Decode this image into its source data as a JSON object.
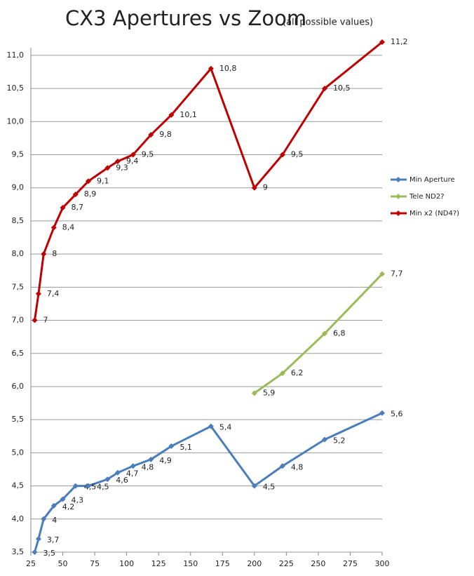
{
  "chart_data": {
    "type": "line",
    "title": "CX3 Apertures vs Zoom",
    "subtitle": "(all possible values)",
    "x": [
      28,
      31,
      35,
      43,
      50,
      60,
      70,
      85,
      93,
      105,
      119,
      135,
      166,
      200,
      222,
      255,
      300
    ],
    "series": [
      {
        "name": "Min Aperture",
        "color": "#4a7ebb",
        "values": [
          3.5,
          3.7,
          4.0,
          4.2,
          4.3,
          4.5,
          4.5,
          4.6,
          4.7,
          4.8,
          4.9,
          5.1,
          5.4,
          4.5,
          4.8,
          5.2,
          5.6
        ],
        "value_labels": [
          "3,5",
          "3,7",
          "4",
          "4,2",
          "4,3",
          "4,5",
          "4,5",
          "4,6",
          "4,7",
          "4,8",
          "4,9",
          "5,1",
          "5,4",
          "4,5",
          "4,8",
          "5,2",
          "5,6"
        ]
      },
      {
        "name": "Tele ND2?",
        "color": "#9bbb59",
        "values": [
          null,
          null,
          null,
          null,
          null,
          null,
          null,
          null,
          null,
          null,
          null,
          null,
          null,
          5.9,
          6.2,
          6.8,
          7.7
        ],
        "value_labels": [
          null,
          null,
          null,
          null,
          null,
          null,
          null,
          null,
          null,
          null,
          null,
          null,
          null,
          "5,9",
          "6,2",
          "6,8",
          "7,7"
        ]
      },
      {
        "name": "Min x2 (ND4?)",
        "color": "#c00000",
        "values": [
          7.0,
          7.4,
          8.0,
          8.4,
          8.7,
          8.9,
          9.1,
          9.3,
          9.4,
          9.5,
          9.8,
          10.1,
          10.8,
          9.0,
          9.5,
          10.5,
          11.2
        ],
        "value_labels": [
          "7",
          "7,4",
          "8",
          "8,4",
          "8,7",
          "8,9",
          "9,1",
          "9,3",
          "9,4",
          "9,5",
          "9,8",
          "10,1",
          "10,8",
          "9",
          "9,5",
          "10,5",
          "11,2"
        ]
      }
    ],
    "xlim": [
      25,
      300
    ],
    "xticks": [
      25,
      50,
      75,
      100,
      125,
      150,
      175,
      200,
      225,
      250,
      275,
      300
    ],
    "ylim": [
      3.5,
      11.2
    ],
    "yticks": [
      {
        "value": 3.5,
        "label": "3,5"
      },
      {
        "value": 4.0,
        "label": "4,0"
      },
      {
        "value": 4.5,
        "label": "4,5"
      },
      {
        "value": 5.0,
        "label": "5,0"
      },
      {
        "value": 5.5,
        "label": "5,5"
      },
      {
        "value": 6.0,
        "label": "6,0"
      },
      {
        "value": 6.5,
        "label": "6,5"
      },
      {
        "value": 7.0,
        "label": "7,0"
      },
      {
        "value": 7.5,
        "label": "7,5"
      },
      {
        "value": 8.0,
        "label": "8,0"
      },
      {
        "value": 8.5,
        "label": "8,5"
      },
      {
        "value": 9.0,
        "label": "9,0"
      },
      {
        "value": 9.5,
        "label": "9,5"
      },
      {
        "value": 10.0,
        "label": "10,0"
      },
      {
        "value": 10.5,
        "label": "10,5"
      },
      {
        "value": 11.0,
        "label": "11,0"
      }
    ],
    "grid": true,
    "legend": "right"
  }
}
